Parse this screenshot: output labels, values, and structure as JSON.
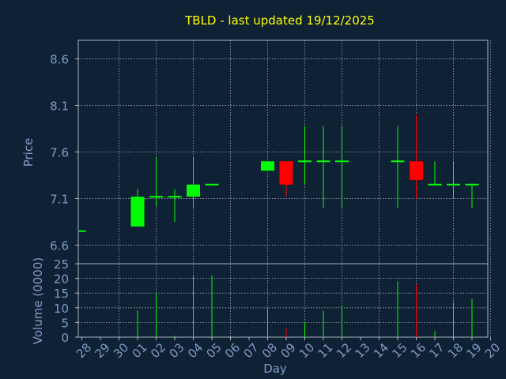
{
  "colors": {
    "background": "#0f2135",
    "frame": "#aab4c0",
    "grid": "#d0d8e0",
    "title": "#ffff00",
    "axis_text": "#7e9cc4",
    "up": "#00ff00",
    "down": "#ff0000"
  },
  "chart_data": {
    "type": "candlestick",
    "title": "TBLD - last updated 19/12/2025",
    "xlabel": "Day",
    "price_panel": {
      "ylabel": "Price",
      "ylim": [
        6.4,
        8.8
      ],
      "yticks": [
        "6.6",
        "7.1",
        "7.6",
        "8.1",
        "8.6"
      ],
      "grid": true
    },
    "volume_panel": {
      "ylabel": "Volume (0000)",
      "ylim": [
        0,
        25
      ],
      "yticks": [
        "0",
        "5",
        "10",
        "15",
        "20",
        "25"
      ],
      "grid": true
    },
    "x_ticks": [
      "28",
      "29",
      "30",
      "01",
      "02",
      "03",
      "04",
      "05",
      "06",
      "07",
      "08",
      "09",
      "10",
      "11",
      "12",
      "13",
      "14",
      "15",
      "16",
      "17",
      "18",
      "19",
      "20"
    ],
    "candles": [
      {
        "day": "28",
        "open": 6.75,
        "high": 6.75,
        "low": 6.75,
        "close": 6.75,
        "volume": 0
      },
      {
        "day": "01",
        "open": 6.8,
        "high": 7.2,
        "low": 6.8,
        "close": 7.12,
        "volume": 9
      },
      {
        "day": "02",
        "open": 7.12,
        "high": 7.55,
        "low": 7.02,
        "close": 7.12,
        "volume": 15
      },
      {
        "day": "03",
        "open": 7.12,
        "high": 7.2,
        "low": 6.85,
        "close": 7.12,
        "volume": 0.5
      },
      {
        "day": "04",
        "open": 7.12,
        "high": 7.55,
        "low": 7.0,
        "close": 7.25,
        "volume": 21
      },
      {
        "day": "05",
        "open": 7.25,
        "high": 7.25,
        "low": 7.25,
        "close": 7.25,
        "volume": 21
      },
      {
        "day": "08",
        "open": 7.4,
        "high": 7.5,
        "low": 7.4,
        "close": 7.5,
        "volume": 10
      },
      {
        "day": "09",
        "open": 7.5,
        "high": 7.5,
        "low": 7.12,
        "close": 7.25,
        "volume": 3
      },
      {
        "day": "10",
        "open": 7.5,
        "high": 7.88,
        "low": 7.25,
        "close": 7.5,
        "volume": 5
      },
      {
        "day": "11",
        "open": 7.5,
        "high": 7.88,
        "low": 7.0,
        "close": 7.5,
        "volume": 9
      },
      {
        "day": "12",
        "open": 7.5,
        "high": 7.88,
        "low": 7.0,
        "close": 7.5,
        "volume": 11
      },
      {
        "day": "15",
        "open": 7.5,
        "high": 7.88,
        "low": 7.0,
        "close": 7.5,
        "volume": 19
      },
      {
        "day": "16",
        "open": 7.5,
        "high": 8.0,
        "low": 7.1,
        "close": 7.3,
        "volume": 18
      },
      {
        "day": "17",
        "open": 7.25,
        "high": 7.5,
        "low": 7.25,
        "close": 7.25,
        "volume": 2
      },
      {
        "day": "18",
        "open": 7.25,
        "high": 7.5,
        "low": 7.1,
        "close": 7.25,
        "volume": 12
      },
      {
        "day": "19",
        "open": 7.25,
        "high": 7.25,
        "low": 7.0,
        "close": 7.25,
        "volume": 13
      }
    ]
  }
}
